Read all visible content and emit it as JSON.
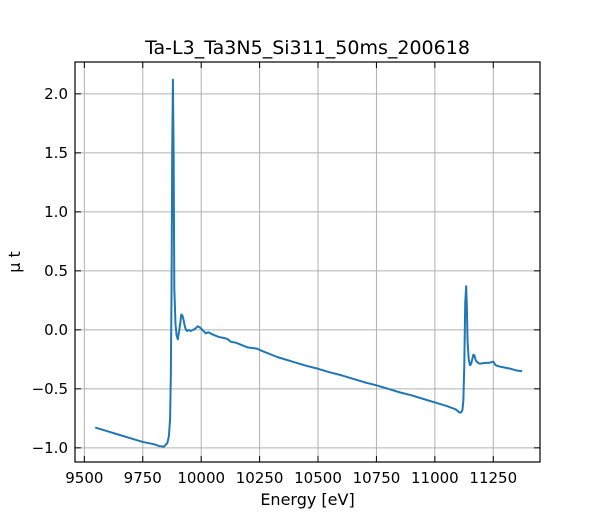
{
  "chart_data": {
    "type": "line",
    "title": "Ta-L3_Ta3N5_Si311_50ms_200618",
    "xlabel": "Energy [eV]",
    "ylabel": "μ t",
    "xlim": [
      9460,
      11450
    ],
    "ylim": [
      -1.12,
      2.27
    ],
    "xticks": [
      9500,
      9750,
      10000,
      10250,
      10500,
      10750,
      11000,
      11250
    ],
    "yticks": [
      -1.0,
      -0.5,
      0.0,
      0.5,
      1.0,
      1.5,
      2.0
    ],
    "xtick_labels": [
      "9500",
      "9750",
      "10000",
      "10250",
      "10500",
      "10750",
      "11000",
      "11250"
    ],
    "ytick_labels": [
      "−1.0",
      "−0.5",
      "0.0",
      "0.5",
      "1.0",
      "1.5",
      "2.0"
    ],
    "grid": true,
    "tick_direction": "in",
    "series": [
      {
        "color": "#1f77b4",
        "x": [
          9550,
          9600,
          9650,
          9700,
          9750,
          9800,
          9820,
          9840,
          9855,
          9862,
          9867,
          9870,
          9873,
          9876,
          9879,
          9882,
          9885,
          9890,
          9895,
          9900,
          9905,
          9910,
          9915,
          9920,
          9925,
          9930,
          9935,
          9940,
          9945,
          9955,
          9965,
          9975,
          9985,
          9995,
          10000,
          10010,
          10020,
          10030,
          10050,
          10075,
          10100,
          10115,
          10125,
          10150,
          10175,
          10200,
          10225,
          10240,
          10250,
          10275,
          10300,
          10325,
          10350,
          10400,
          10450,
          10500,
          10550,
          10600,
          10650,
          10700,
          10750,
          10800,
          10850,
          10900,
          10950,
          11000,
          11050,
          11090,
          11105,
          11112,
          11118,
          11122,
          11126,
          11130,
          11134,
          11137,
          11140,
          11145,
          11150,
          11155,
          11160,
          11165,
          11170,
          11175,
          11180,
          11185,
          11190,
          11200,
          11215,
          11230,
          11240,
          11250,
          11260,
          11275,
          11300,
          11325,
          11350,
          11370
        ],
        "y": [
          -0.83,
          -0.86,
          -0.89,
          -0.92,
          -0.95,
          -0.97,
          -0.985,
          -0.99,
          -0.96,
          -0.9,
          -0.75,
          -0.4,
          0.3,
          1.5,
          2.12,
          1.5,
          0.35,
          0.05,
          -0.05,
          -0.08,
          -0.02,
          0.05,
          0.13,
          0.12,
          0.08,
          0.03,
          0.0,
          -0.01,
          0.0,
          -0.01,
          0.0,
          0.01,
          0.03,
          0.02,
          0.01,
          -0.01,
          -0.03,
          -0.02,
          -0.04,
          -0.06,
          -0.07,
          -0.08,
          -0.1,
          -0.11,
          -0.13,
          -0.15,
          -0.155,
          -0.16,
          -0.17,
          -0.19,
          -0.21,
          -0.23,
          -0.245,
          -0.275,
          -0.305,
          -0.33,
          -0.36,
          -0.385,
          -0.415,
          -0.445,
          -0.47,
          -0.5,
          -0.53,
          -0.555,
          -0.585,
          -0.615,
          -0.645,
          -0.675,
          -0.7,
          -0.7,
          -0.68,
          -0.6,
          -0.3,
          0.23,
          0.37,
          0.2,
          -0.1,
          -0.25,
          -0.3,
          -0.29,
          -0.25,
          -0.21,
          -0.22,
          -0.26,
          -0.27,
          -0.28,
          -0.285,
          -0.285,
          -0.28,
          -0.28,
          -0.275,
          -0.27,
          -0.3,
          -0.31,
          -0.32,
          -0.33,
          -0.345,
          -0.35
        ]
      }
    ]
  }
}
